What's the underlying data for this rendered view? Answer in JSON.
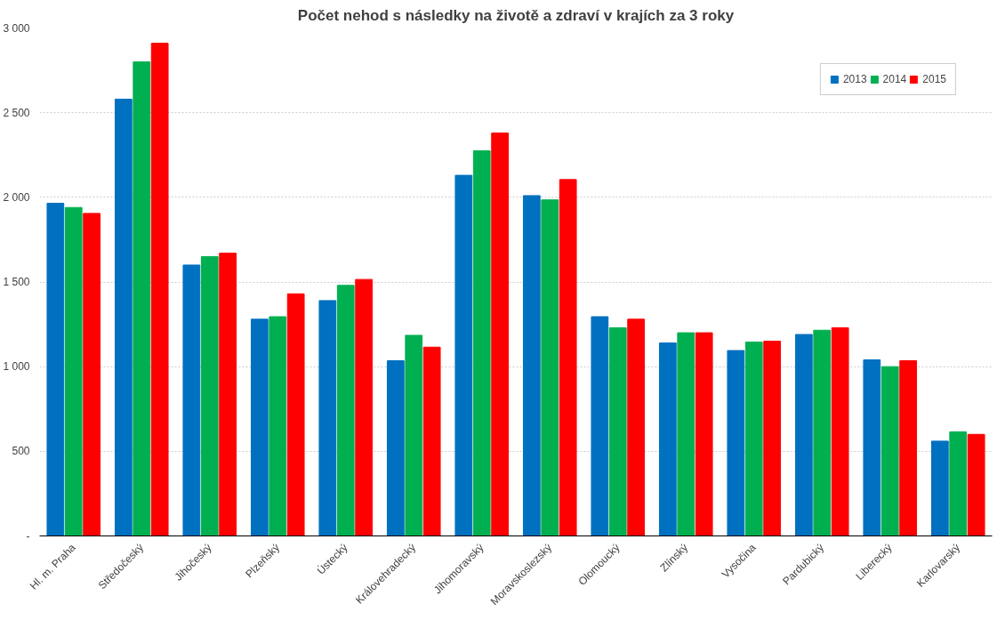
{
  "chart_data": {
    "type": "bar",
    "title": "Počet nehod s následky na životě a zdraví v krajích za 3 roky",
    "categories": [
      "Hl. m. Praha",
      "Středočeský",
      "Jihočeský",
      "Plzeňský",
      "Ústecký",
      "Královehradecký",
      "Jihomoravský",
      "Moravskoslezský",
      "Olomoucký",
      "Zlínský",
      "Vysočina",
      "Pardubický",
      "Liberecký",
      "Karlovarský"
    ],
    "series": [
      {
        "name": "2013",
        "color": "#0070c0",
        "values": [
          1965,
          2580,
          1600,
          1280,
          1390,
          1035,
          2130,
          2010,
          1295,
          1140,
          1095,
          1190,
          1040,
          560
        ]
      },
      {
        "name": "2014",
        "color": "#00b050",
        "values": [
          1940,
          2800,
          1650,
          1295,
          1480,
          1185,
          2275,
          1985,
          1230,
          1200,
          1145,
          1215,
          1000,
          615
        ]
      },
      {
        "name": "2015",
        "color": "#ff0000",
        "values": [
          1905,
          2910,
          1670,
          1430,
          1515,
          1115,
          2380,
          2105,
          1280,
          1200,
          1150,
          1230,
          1035,
          600
        ]
      }
    ],
    "ylim": [
      0,
      3000
    ],
    "yticks": [
      {
        "value": 0,
        "label": "-"
      },
      {
        "value": 500,
        "label": "500"
      },
      {
        "value": 1000,
        "label": "1 000"
      },
      {
        "value": 1500,
        "label": "1 500"
      },
      {
        "value": 2000,
        "label": "2 000"
      },
      {
        "value": 2500,
        "label": "2 500"
      },
      {
        "value": 3000,
        "label": "3 000"
      }
    ],
    "grid": "y",
    "legend": "top right"
  }
}
